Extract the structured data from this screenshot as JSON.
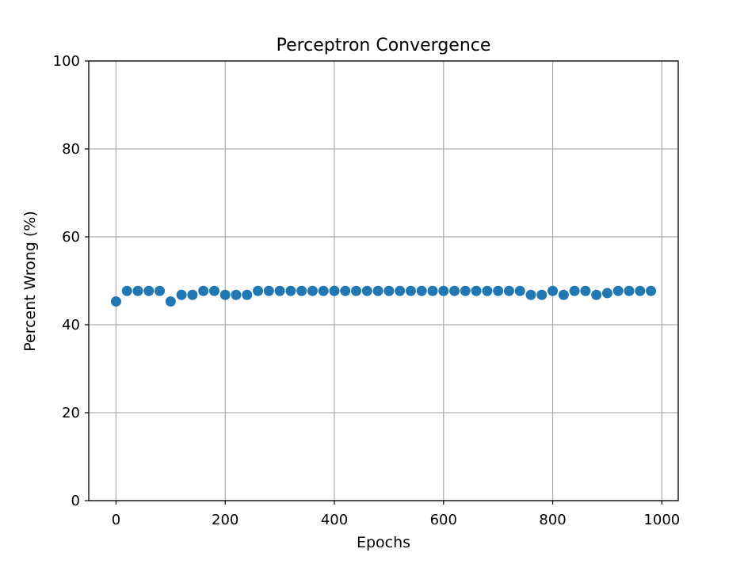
{
  "chart_data": {
    "type": "scatter",
    "title": "Perceptron Convergence",
    "xlabel": "Epochs",
    "ylabel": "Percent Wrong (%)",
    "xlim": [
      -50,
      1030
    ],
    "ylim": [
      0,
      100
    ],
    "xticks": [
      0,
      200,
      400,
      600,
      800,
      1000
    ],
    "yticks": [
      0,
      20,
      40,
      60,
      80,
      100
    ],
    "grid": true,
    "marker_color": "#1f77b4",
    "series": [
      {
        "x": [
          0,
          20,
          40,
          60,
          80,
          100,
          120,
          140,
          160,
          180,
          200,
          220,
          240,
          260,
          280,
          300,
          320,
          340,
          360,
          380,
          400,
          420,
          440,
          460,
          480,
          500,
          520,
          540,
          560,
          580,
          600,
          620,
          640,
          660,
          680,
          700,
          720,
          740,
          760,
          780,
          800,
          820,
          840,
          860,
          880,
          900,
          920,
          940,
          960,
          980
        ],
        "y": [
          45.3,
          47.7,
          47.7,
          47.7,
          47.7,
          45.3,
          46.8,
          46.8,
          47.7,
          47.7,
          46.8,
          46.8,
          46.8,
          47.7,
          47.7,
          47.7,
          47.7,
          47.7,
          47.7,
          47.7,
          47.7,
          47.7,
          47.7,
          47.7,
          47.7,
          47.7,
          47.7,
          47.7,
          47.7,
          47.7,
          47.7,
          47.7,
          47.7,
          47.7,
          47.7,
          47.7,
          47.7,
          47.7,
          46.8,
          46.8,
          47.7,
          46.8,
          47.7,
          47.7,
          46.8,
          47.2,
          47.7,
          47.7,
          47.7,
          47.7
        ]
      }
    ]
  }
}
